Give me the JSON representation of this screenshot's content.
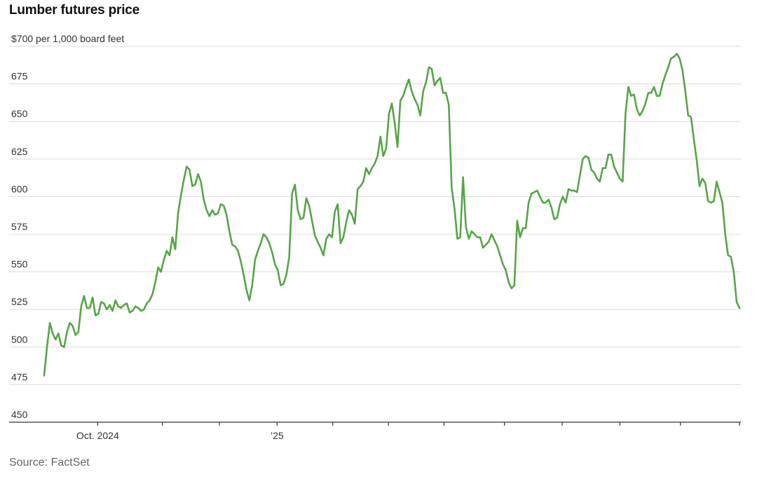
{
  "title": "Lumber futures price",
  "source": "Source: FactSet",
  "colors": {
    "line": "#56a547",
    "grid": "#dcdcdc",
    "axis": "#333333"
  },
  "chart_data": {
    "type": "line",
    "title": "Lumber futures price",
    "ylabel": "",
    "xlabel": "",
    "ylim": [
      450,
      700
    ],
    "yticks": [
      {
        "value": 700,
        "label": "$700 per 1,000 board feet"
      },
      {
        "value": 675,
        "label": "675"
      },
      {
        "value": 650,
        "label": "650"
      },
      {
        "value": 625,
        "label": "625"
      },
      {
        "value": 600,
        "label": "600"
      },
      {
        "value": 575,
        "label": "575"
      },
      {
        "value": 550,
        "label": "550"
      },
      {
        "value": 525,
        "label": "525"
      },
      {
        "value": 500,
        "label": "500"
      },
      {
        "value": 475,
        "label": "475"
      },
      {
        "value": 450,
        "label": "450"
      }
    ],
    "xlabels": [
      {
        "label": "Oct. 2024",
        "at": 0.077
      },
      {
        "label": "’25",
        "at": 0.335
      }
    ],
    "xticks": [
      0.077,
      0.17,
      0.252,
      0.335,
      0.415,
      0.495,
      0.575,
      0.662,
      0.745,
      0.828,
      0.915,
      1.0
    ],
    "grid": true,
    "series": [
      {
        "values": [
          481,
          500,
          516,
          509,
          505,
          509,
          501,
          500,
          510,
          516,
          514,
          508,
          510,
          527,
          534,
          526,
          526,
          533,
          521,
          522,
          530,
          529,
          525,
          528,
          524,
          531,
          527,
          526,
          528,
          529,
          523,
          524,
          527,
          526,
          524,
          525,
          529,
          531,
          535,
          543,
          553,
          550,
          558,
          564,
          561,
          573,
          565,
          589,
          601,
          611,
          620,
          618,
          607,
          608,
          615,
          610,
          598,
          591,
          587,
          591,
          588,
          589,
          595,
          594,
          588,
          577,
          568,
          567,
          564,
          557,
          548,
          538,
          531,
          541,
          558,
          564,
          569,
          575,
          573,
          569,
          563,
          555,
          551,
          541,
          542,
          548,
          560,
          602,
          608,
          591,
          585,
          586,
          599,
          594,
          584,
          574,
          570,
          566,
          561,
          572,
          575,
          573,
          590,
          595,
          569,
          573,
          583,
          591,
          588,
          582,
          605,
          607,
          610,
          619,
          615,
          619,
          622,
          627,
          640,
          627,
          632,
          655,
          662,
          649,
          633,
          664,
          667,
          673,
          678,
          670,
          665,
          661,
          654,
          670,
          676,
          686,
          685,
          674,
          677,
          679,
          669,
          669,
          661,
          606,
          592,
          572,
          573,
          613,
          580,
          572,
          577,
          575,
          573,
          573,
          566,
          568,
          570,
          575,
          571,
          567,
          561,
          555,
          551,
          543,
          539,
          541,
          584,
          573,
          579,
          579,
          596,
          602,
          603,
          604,
          600,
          596,
          596,
          598,
          593,
          585,
          586,
          595,
          600,
          596,
          605,
          604,
          604,
          603,
          614,
          625,
          627,
          626,
          618,
          616,
          612,
          610,
          619,
          619,
          628,
          628,
          620,
          616,
          612,
          610,
          655,
          673,
          667,
          668,
          658,
          654,
          657,
          662,
          669,
          669,
          673,
          667,
          667,
          675,
          681,
          686,
          692,
          693,
          695,
          692,
          684,
          670,
          654,
          653,
          638,
          624,
          607,
          612,
          609,
          597,
          596,
          597,
          610,
          603,
          596,
          575,
          561,
          560,
          550,
          530,
          526
        ]
      }
    ]
  }
}
